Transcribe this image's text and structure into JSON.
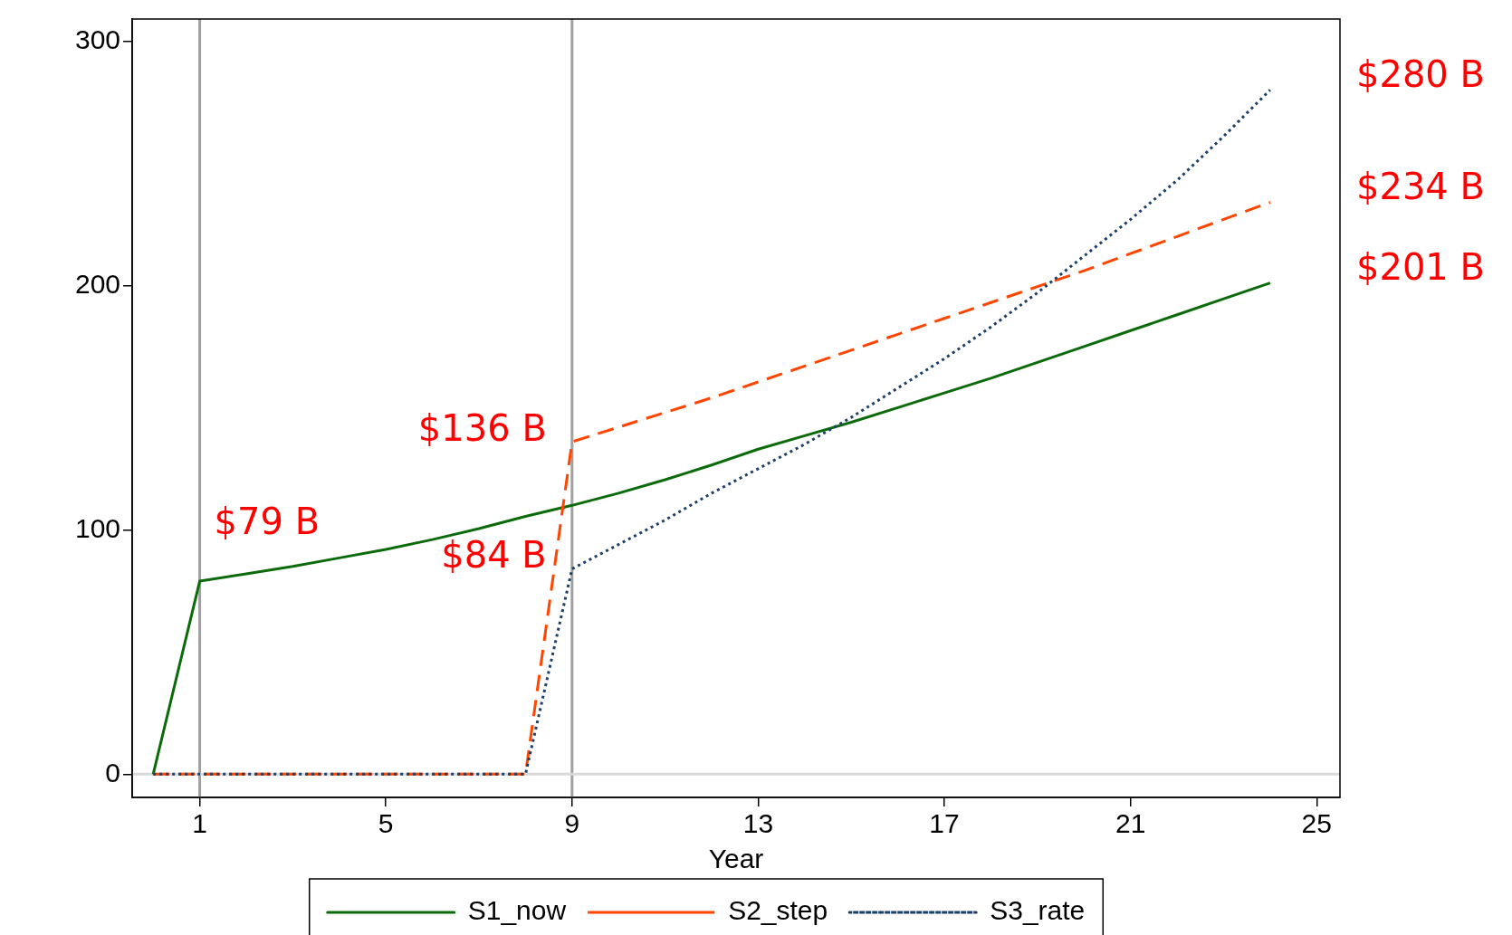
{
  "chart_data": {
    "type": "line",
    "xlabel": "Year",
    "xlim": [
      -0.45,
      25.5
    ],
    "xticks": [
      1,
      5,
      9,
      13,
      17,
      21,
      25
    ],
    "ylim": [
      -9.5,
      309
    ],
    "yticks": [
      0,
      100,
      200,
      300
    ],
    "grid": false,
    "legend": "bottom",
    "marker": "none",
    "series": [
      {
        "name": "S1_now",
        "color": "#0b6b0b",
        "line_style": "solid",
        "x": [
          0,
          1,
          2,
          3,
          4,
          5,
          6,
          7,
          8,
          9,
          10,
          11,
          12,
          13,
          14,
          15,
          16,
          17,
          18,
          19,
          20,
          21,
          22,
          23,
          24
        ],
        "values": [
          0,
          79,
          82,
          85,
          88.5,
          92,
          96,
          100.5,
          105.5,
          110,
          115,
          120.5,
          126.5,
          133,
          138.5,
          144,
          150,
          156,
          162,
          168.5,
          175,
          181.5,
          188,
          194.5,
          201
        ]
      },
      {
        "name": "S2_step",
        "color": "#ff4500",
        "line_style": "dashed",
        "x": [
          0,
          1,
          2,
          3,
          4,
          5,
          6,
          7,
          8,
          9,
          10,
          11,
          12,
          13,
          14,
          15,
          16,
          17,
          18,
          19,
          20,
          21,
          22,
          23,
          24
        ],
        "values": [
          0,
          0,
          0,
          0,
          0,
          0,
          0,
          0,
          0,
          136,
          142,
          148,
          154,
          160.5,
          167,
          173.5,
          180,
          186.5,
          193,
          199.5,
          206,
          213,
          220,
          227,
          234
        ]
      },
      {
        "name": "S3_rate",
        "color": "#1b3f66",
        "line_style": "dotted",
        "x": [
          0,
          1,
          2,
          3,
          4,
          5,
          6,
          7,
          8,
          9,
          10,
          11,
          12,
          13,
          14,
          15,
          16,
          17,
          18,
          19,
          20,
          21,
          22,
          23,
          24
        ],
        "values": [
          0,
          0,
          0,
          0,
          0,
          0,
          0,
          0,
          0,
          84,
          94,
          104,
          115,
          125,
          135,
          146,
          158,
          170,
          183,
          197,
          212,
          227,
          243,
          261,
          280
        ]
      }
    ],
    "ref_lines": [
      {
        "axis": "x",
        "value": 1,
        "color": "#a0a0a0"
      },
      {
        "axis": "x",
        "value": 9,
        "color": "#a0a0a0"
      },
      {
        "axis": "y",
        "value": 0,
        "color": "#d9d9d9"
      }
    ],
    "annotations": [
      {
        "text": "$79 B",
        "x": 1,
        "y": 79
      },
      {
        "text": "$136 B",
        "x": 9,
        "y": 136
      },
      {
        "text": "$84 B",
        "x": 9,
        "y": 84
      },
      {
        "text": "$280 B",
        "x": 24,
        "y": 280
      },
      {
        "text": "$234 B",
        "x": 24,
        "y": 234
      },
      {
        "text": "$201 B",
        "x": 24,
        "y": 201
      }
    ]
  }
}
